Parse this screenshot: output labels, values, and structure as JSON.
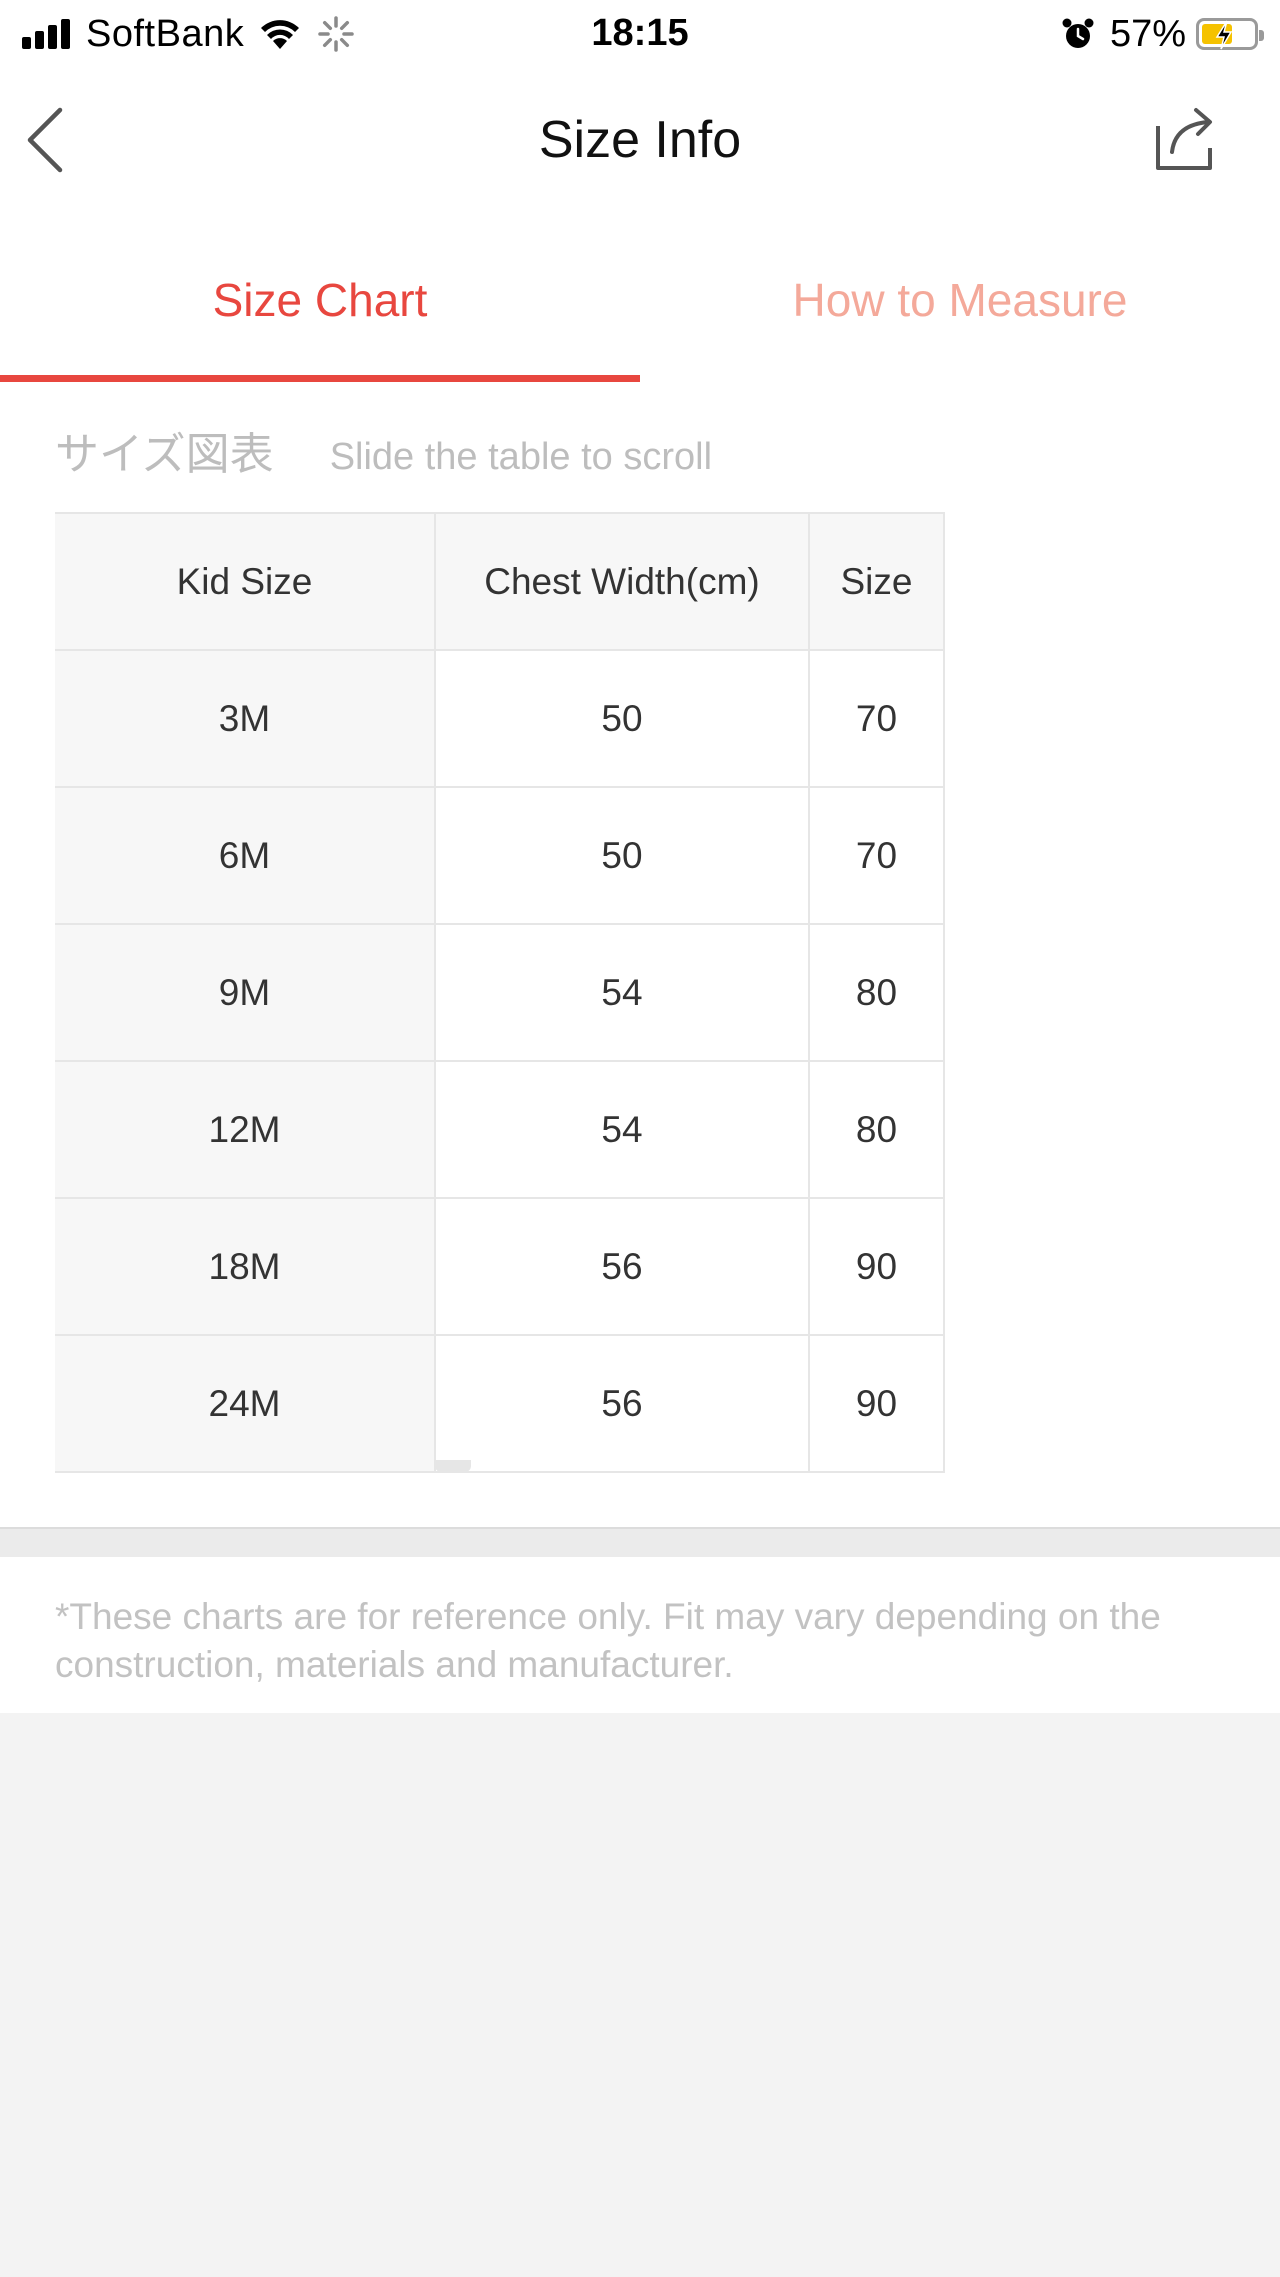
{
  "status_bar": {
    "carrier": "SoftBank",
    "time": "18:15",
    "battery_percent": "57%",
    "icons": [
      "signal-bars-icon",
      "wifi-icon",
      "loading-spinner-icon",
      "alarm-icon",
      "battery-charging-icon"
    ]
  },
  "nav": {
    "title": "Size Info",
    "back_icon": "chevron-left-icon",
    "share_icon": "share-icon"
  },
  "tabs": [
    {
      "label": "Size Chart",
      "active": true
    },
    {
      "label": "How to Measure",
      "active": false
    }
  ],
  "colors": {
    "accent": "#e8473f",
    "accent_light": "#f4a99a",
    "muted_text": "#bdbdbd"
  },
  "caption": {
    "title": "サイズ図表",
    "hint": "Slide the table to scroll"
  },
  "table": {
    "headers": [
      "Kid Size",
      "Chest Width(cm)",
      "Size"
    ],
    "rows": [
      [
        "3M",
        "50",
        "70"
      ],
      [
        "6M",
        "50",
        "70"
      ],
      [
        "9M",
        "54",
        "80"
      ],
      [
        "12M",
        "54",
        "80"
      ],
      [
        "18M",
        "56",
        "90"
      ],
      [
        "24M",
        "56",
        "90"
      ]
    ]
  },
  "note": "*These charts are for reference only. Fit may vary depending on the construction, materials and manufacturer."
}
